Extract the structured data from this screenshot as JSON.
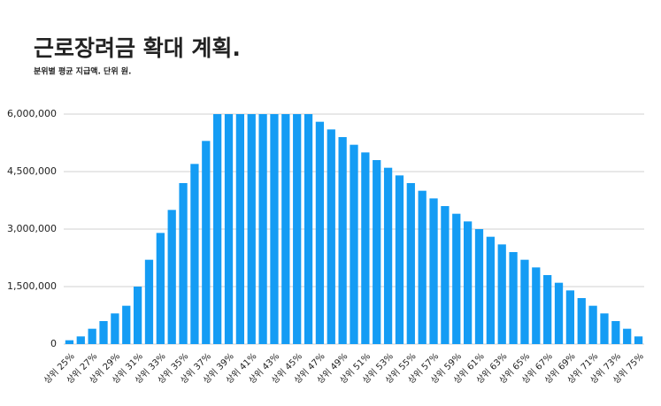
{
  "chart_data": {
    "type": "bar",
    "title": "근로장려금 확대 계획.",
    "subtitle": "분위별 평균 지급액. 단위 원.",
    "categories": [
      "상위 25%",
      null,
      "상위 27%",
      null,
      "상위 29%",
      null,
      "상위 31%",
      null,
      "상위 33%",
      null,
      "상위 35%",
      null,
      "상위 37%",
      null,
      "상위 39%",
      null,
      "상위 41%",
      null,
      "상위 43%",
      null,
      "상위 45%",
      null,
      "상위 47%",
      null,
      "상위 49%",
      null,
      "상위 51%",
      null,
      "상위 53%",
      null,
      "상위 55%",
      null,
      "상위 57%",
      null,
      "상위 59%",
      null,
      "상위 61%",
      null,
      "상위 63%",
      null,
      "상위 65%",
      null,
      "상위 67%",
      null,
      "상위 69%",
      null,
      "상위 71%",
      null,
      "상위 73%",
      null,
      "상위 75%"
    ],
    "values": [
      100000,
      200000,
      400000,
      600000,
      800000,
      1000000,
      1500000,
      2200000,
      2900000,
      3500000,
      4200000,
      4700000,
      5300000,
      6000000,
      6000000,
      6000000,
      6000000,
      6000000,
      6000000,
      6000000,
      6000000,
      6000000,
      5800000,
      5600000,
      5400000,
      5200000,
      5000000,
      4800000,
      4600000,
      4400000,
      4200000,
      4000000,
      3800000,
      3600000,
      3400000,
      3200000,
      3000000,
      2800000,
      2600000,
      2400000,
      2200000,
      2000000,
      1800000,
      1600000,
      1400000,
      1200000,
      1000000,
      800000,
      600000,
      400000,
      200000
    ],
    "color": "#149cf4",
    "ylim": [
      0,
      6000000
    ],
    "yticks": [
      0,
      {
        "value": 1500000,
        "label": "1,500,000"
      },
      {
        "value": 3000000,
        "label": "3,000,000"
      },
      {
        "value": 4500000,
        "label": "4,500,000"
      },
      {
        "value": 6000000,
        "label": "6,000,000"
      }
    ],
    "grid": true
  }
}
